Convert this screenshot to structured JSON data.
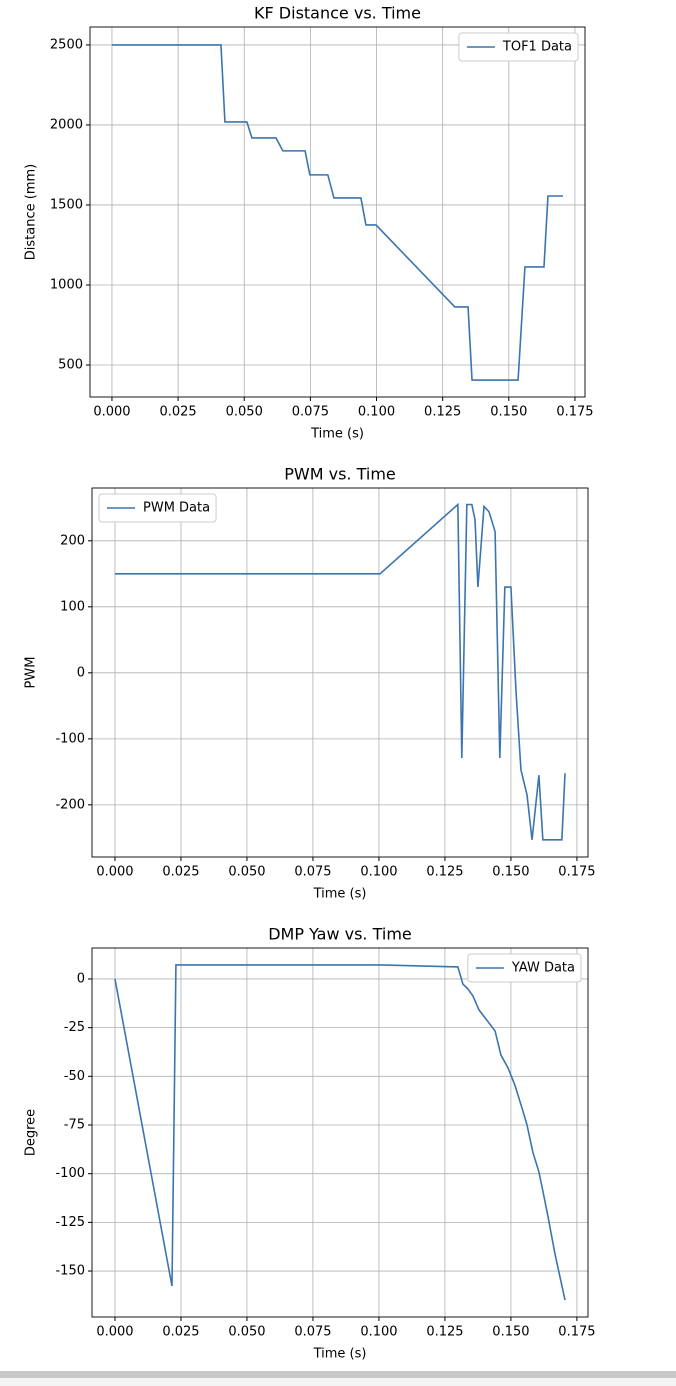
{
  "chart_data": [
    {
      "type": "line",
      "title": "KF Distance vs. Time",
      "x_label": "Time (s)",
      "y_label": "Distance (mm)",
      "x": [
        0,
        0.0412,
        0.0427,
        0.051,
        0.0529,
        0.062,
        0.0646,
        0.073,
        0.0748,
        0.0816,
        0.0839,
        0.0941,
        0.096,
        0.0998,
        0.1296,
        0.1346,
        0.1361,
        0.1535,
        0.1561,
        0.1633,
        0.1648,
        0.1705
      ],
      "series": [
        {
          "name": "TOF1 Data",
          "color": "#3b75af",
          "values": [
            2500,
            2500,
            2019,
            2019,
            1919,
            1919,
            1838,
            1838,
            1688,
            1688,
            1544,
            1544,
            1375,
            1375,
            863,
            863,
            406,
            406,
            1113,
            1113,
            1556,
            1556
          ]
        }
      ],
      "xlim": [
        -0.0083,
        0.1788
      ],
      "ylim": [
        300,
        2612
      ],
      "xticks": [
        {
          "value": 0,
          "label": "0.000"
        },
        {
          "value": 0.025,
          "label": "0.025"
        },
        {
          "value": 0.05,
          "label": "0.050"
        },
        {
          "value": 0.075,
          "label": "0.075"
        },
        {
          "value": 0.1,
          "label": "0.100"
        },
        {
          "value": 0.125,
          "label": "0.125"
        },
        {
          "value": 0.15,
          "label": "0.150"
        },
        {
          "value": 0.175,
          "label": "0.175"
        }
      ],
      "yticks": [
        500,
        1000,
        1500,
        2000,
        2500
      ],
      "grid": true,
      "legend": "upper right"
    },
    {
      "type": "line",
      "title": "PWM vs. Time",
      "x_label": "Time (s)",
      "y_label": "PWM",
      "x": [
        0,
        0.1004,
        0.1299,
        0.1314,
        0.1333,
        0.1352,
        0.1364,
        0.1375,
        0.1398,
        0.1417,
        0.144,
        0.1458,
        0.1477,
        0.15,
        0.1519,
        0.1538,
        0.1561,
        0.158,
        0.1606,
        0.1621,
        0.1693,
        0.1705
      ],
      "series": [
        {
          "name": "PWM Data",
          "color": "#3b75af",
          "values": [
            150,
            150,
            255,
            -129,
            255,
            255,
            232,
            130,
            252,
            244,
            214,
            -129,
            130,
            130,
            -26,
            -147,
            -185,
            -253,
            -155,
            -253,
            -253,
            -152
          ]
        }
      ],
      "xlim": [
        -0.0087,
        0.1792
      ],
      "ylim": [
        -279,
        280
      ],
      "xticks": [
        {
          "value": 0,
          "label": "0.000"
        },
        {
          "value": 0.025,
          "label": "0.025"
        },
        {
          "value": 0.05,
          "label": "0.050"
        },
        {
          "value": 0.075,
          "label": "0.075"
        },
        {
          "value": 0.1,
          "label": "0.100"
        },
        {
          "value": 0.125,
          "label": "0.125"
        },
        {
          "value": 0.15,
          "label": "0.150"
        },
        {
          "value": 0.175,
          "label": "0.175"
        }
      ],
      "yticks": [
        -200,
        -100,
        0,
        100,
        200
      ],
      "grid": true,
      "legend": "upper left"
    },
    {
      "type": "line",
      "title": "DMP Yaw vs. Time",
      "x_label": "Time (s)",
      "y_label": "Degree",
      "x": [
        0,
        0.0216,
        0.0231,
        0.1004,
        0.1299,
        0.1318,
        0.1337,
        0.1356,
        0.1379,
        0.1405,
        0.144,
        0.1462,
        0.1489,
        0.1515,
        0.1542,
        0.1561,
        0.1583,
        0.1606,
        0.1621,
        0.164,
        0.1667,
        0.1705
      ],
      "series": [
        {
          "name": "YAW Data",
          "color": "#3b75af",
          "values": [
            0,
            -157.7,
            7.2,
            7.2,
            6.2,
            -2.6,
            -5.1,
            -8.7,
            -15.9,
            -20.5,
            -26.7,
            -39,
            -45.7,
            -54.5,
            -66.3,
            -75,
            -88.9,
            -99.1,
            -108.9,
            -121.7,
            -141.3,
            -164.9
          ]
        }
      ],
      "xlim": [
        -0.0087,
        0.1792
      ],
      "ylim": [
        -173.6,
        15.9
      ],
      "xticks": [
        {
          "value": 0,
          "label": "0.000"
        },
        {
          "value": 0.025,
          "label": "0.025"
        },
        {
          "value": 0.05,
          "label": "0.050"
        },
        {
          "value": 0.075,
          "label": "0.075"
        },
        {
          "value": 0.1,
          "label": "0.100"
        },
        {
          "value": 0.125,
          "label": "0.125"
        },
        {
          "value": 0.15,
          "label": "0.150"
        },
        {
          "value": 0.175,
          "label": "0.175"
        }
      ],
      "yticks": [
        -150,
        -125,
        -100,
        -75,
        -50,
        -25,
        0
      ],
      "grid": true,
      "legend": "upper right"
    }
  ]
}
